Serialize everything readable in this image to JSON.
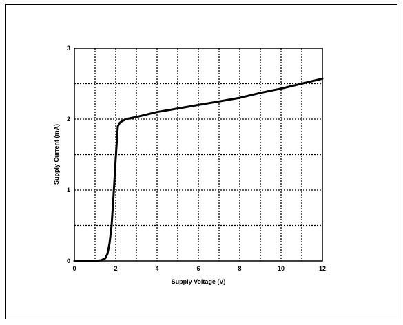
{
  "chart_data": {
    "type": "line",
    "title": "",
    "xlabel": "Supply Voltage  (V)",
    "ylabel": "Supply Current  (mA)",
    "xlim": [
      0,
      12
    ],
    "ylim": [
      0,
      3
    ],
    "x_ticks": [
      "0",
      "2",
      "4",
      "6",
      "8",
      "10",
      "12"
    ],
    "x_tick_values": [
      0,
      2,
      4,
      6,
      8,
      10,
      12
    ],
    "y_ticks": [
      "0",
      "1",
      "2",
      "3"
    ],
    "y_tick_values": [
      0,
      1,
      2,
      3
    ],
    "grid": true,
    "grid_x_step": 1,
    "grid_y_step": 0.5,
    "series": [
      {
        "x": [
          0,
          0.5,
          1.0,
          1.3,
          1.5,
          1.6,
          1.7,
          1.8,
          1.9,
          2.0,
          2.1,
          2.2,
          2.3,
          2.5,
          3,
          4,
          5,
          6,
          7,
          8,
          9,
          10,
          11,
          12
        ],
        "y": [
          0,
          0,
          0,
          0.01,
          0.04,
          0.1,
          0.25,
          0.5,
          0.95,
          1.45,
          1.9,
          1.95,
          1.97,
          2.0,
          2.03,
          2.1,
          2.15,
          2.2,
          2.25,
          2.3,
          2.37,
          2.43,
          2.5,
          2.57
        ]
      }
    ],
    "line_color": "#000000"
  }
}
